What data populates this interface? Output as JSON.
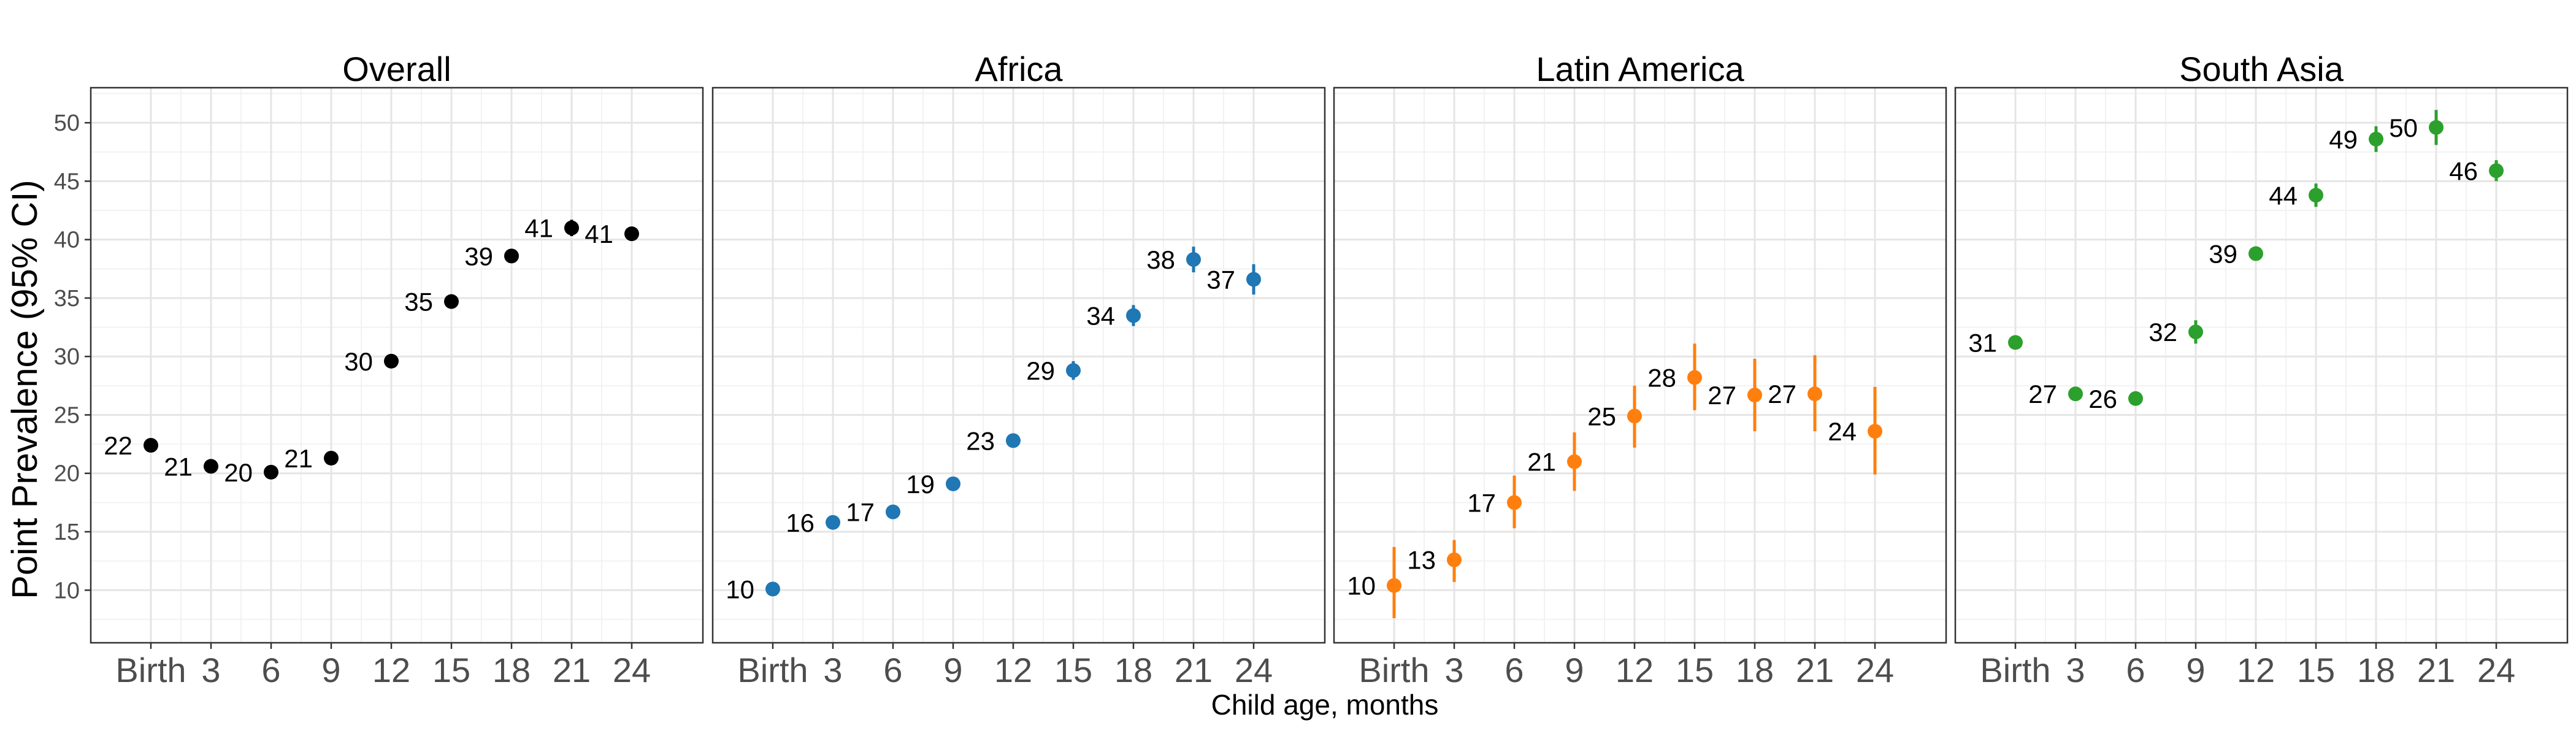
{
  "chart_data": {
    "type": "scatter",
    "xlabel": "Child age, months",
    "ylabel": "Point Prevalence (95% CI)",
    "x_categories": [
      "Birth",
      "3",
      "6",
      "9",
      "12",
      "15",
      "18",
      "21",
      "24"
    ],
    "y_ticks": [
      10,
      15,
      20,
      25,
      30,
      35,
      40,
      45,
      50
    ],
    "ylim": [
      5.5,
      53
    ],
    "grid": true,
    "panels": [
      {
        "title": "Overall",
        "color": "#000000",
        "values": [
          22.4,
          20.6,
          20.1,
          21.3,
          29.6,
          34.7,
          38.6,
          41.0,
          40.5
        ],
        "ci_low": [
          22.0,
          20.2,
          19.7,
          20.9,
          29.2,
          34.2,
          38.0,
          40.3,
          39.9
        ],
        "ci_high": [
          22.8,
          21.0,
          20.5,
          21.7,
          30.0,
          35.2,
          39.2,
          41.7,
          41.1
        ],
        "labels": [
          "22",
          "21",
          "20",
          "21",
          "30",
          "35",
          "39",
          "41",
          "41"
        ]
      },
      {
        "title": "Africa",
        "color": "#1f77b4",
        "values": [
          10.1,
          15.8,
          16.7,
          19.1,
          22.8,
          28.8,
          33.5,
          38.3,
          36.6
        ],
        "ci_low": [
          9.7,
          15.4,
          16.3,
          18.6,
          22.3,
          28.0,
          32.6,
          37.2,
          35.3
        ],
        "ci_high": [
          10.5,
          16.2,
          17.1,
          19.6,
          23.3,
          29.6,
          34.4,
          39.4,
          37.9
        ],
        "labels": [
          "10",
          "16",
          "17",
          "19",
          "23",
          "29",
          "34",
          "38",
          "37"
        ]
      },
      {
        "title": "Latin America",
        "color": "#ff7f0e",
        "values": [
          10.4,
          12.6,
          17.5,
          21.0,
          24.9,
          28.2,
          26.7,
          26.8,
          23.6
        ],
        "ci_low": [
          7.6,
          10.7,
          15.3,
          18.5,
          22.2,
          25.4,
          23.6,
          23.6,
          19.9
        ],
        "ci_high": [
          13.7,
          14.3,
          19.8,
          23.5,
          27.5,
          31.1,
          29.8,
          30.1,
          27.4
        ],
        "labels": [
          "10",
          "13",
          "17",
          "21",
          "25",
          "28",
          "27",
          "27",
          "24"
        ]
      },
      {
        "title": "South Asia",
        "color": "#2ca02c",
        "values": [
          31.2,
          26.8,
          26.4,
          32.1,
          38.8,
          43.8,
          48.6,
          49.6,
          45.9
        ],
        "ci_low": [
          30.7,
          26.4,
          26.0,
          31.1,
          38.2,
          42.8,
          47.5,
          48.1,
          45.0
        ],
        "ci_high": [
          31.7,
          27.2,
          26.8,
          33.1,
          39.4,
          44.8,
          49.7,
          51.1,
          46.8
        ],
        "labels": [
          "31",
          "27",
          "26",
          "32",
          "39",
          "44",
          "49",
          "50",
          "46"
        ]
      }
    ]
  }
}
